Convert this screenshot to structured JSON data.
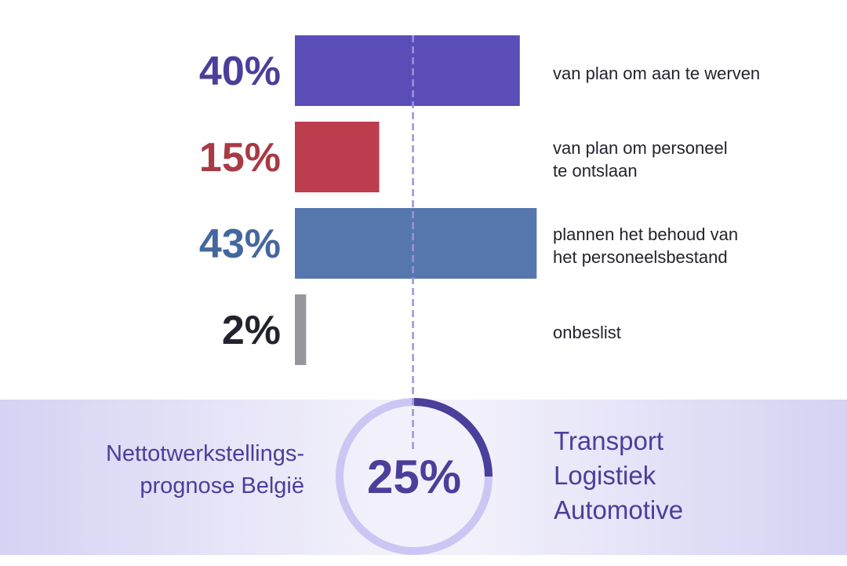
{
  "chart_data": {
    "type": "bar",
    "orientation": "horizontal",
    "xlim": [
      0,
      50
    ],
    "categories": [
      "van plan om aan te werven",
      "van plan om personeel\nte ontslaan",
      "plannen het behoud van\nhet personeelsbestand",
      "onbeslist"
    ],
    "values": [
      40,
      15,
      43,
      2
    ],
    "value_labels": [
      "40%",
      "15%",
      "43%",
      "2%"
    ],
    "colors": [
      "#5b4db8",
      "#bd3d4e",
      "#5677ad",
      "#97969c"
    ],
    "reference_line": {
      "value": 21,
      "style": "dashed",
      "color": "#9b93e0"
    }
  },
  "summary": {
    "left_caption": "Nettotwerkstellings-\nprognose België",
    "ring_value": "25%",
    "ring_fraction": 0.25,
    "ring_track_color": "#cbc6f3",
    "ring_fill_color": "#4a3f9a",
    "sectors": [
      "Transport",
      "Logistiek",
      "Automotive"
    ]
  }
}
